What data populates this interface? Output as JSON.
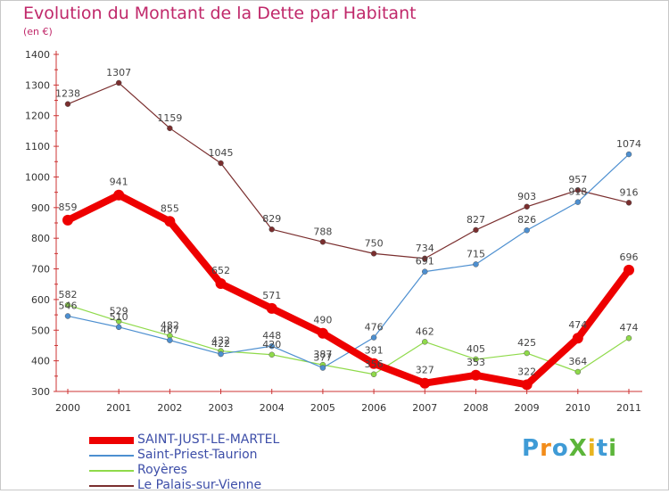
{
  "title": "Evolution du Montant de la Dette par Habitant",
  "unit": "(en €)",
  "logo": {
    "text": "ProXiti",
    "letter_colors": [
      "#3f9bd6",
      "#f28c1a",
      "#3f9bd6",
      "#5cb53a",
      "#e8b420",
      "#3f9bd6",
      "#5cb53a"
    ]
  },
  "chart_data": {
    "type": "line",
    "title": "Evolution du Montant de la Dette par Habitant",
    "xlabel": "",
    "ylabel": "(en €)",
    "x": [
      "2000",
      "2001",
      "2002",
      "2003",
      "2004",
      "2005",
      "2006",
      "2007",
      "2008",
      "2009",
      "2010",
      "2011"
    ],
    "ylim": [
      300,
      1400
    ],
    "yticks": [
      300,
      400,
      500,
      600,
      700,
      800,
      900,
      1000,
      1100,
      1200,
      1300,
      1400
    ],
    "grid": false,
    "legend_position": "bottom-left",
    "series": [
      {
        "name": "SAINT-JUST-LE-MARTEL",
        "color": "#ee0000",
        "values": [
          859,
          941,
          855,
          652,
          571,
          490,
          391,
          327,
          353,
          322,
          474,
          696
        ]
      },
      {
        "name": "Saint-Priest-Taurion",
        "color": "#4d8fd0",
        "values": [
          546,
          510,
          467,
          422,
          448,
          377,
          476,
          691,
          715,
          826,
          918,
          1074
        ]
      },
      {
        "name": "Royères",
        "color": "#8fda4a",
        "values": [
          582,
          529,
          482,
          432,
          420,
          387,
          356,
          462,
          405,
          425,
          364,
          474
        ]
      },
      {
        "name": "Le Palais-sur-Vienne",
        "color": "#7a2e2e",
        "values": [
          1238,
          1307,
          1159,
          1045,
          829,
          788,
          750,
          734,
          827,
          903,
          957,
          916
        ]
      }
    ]
  }
}
